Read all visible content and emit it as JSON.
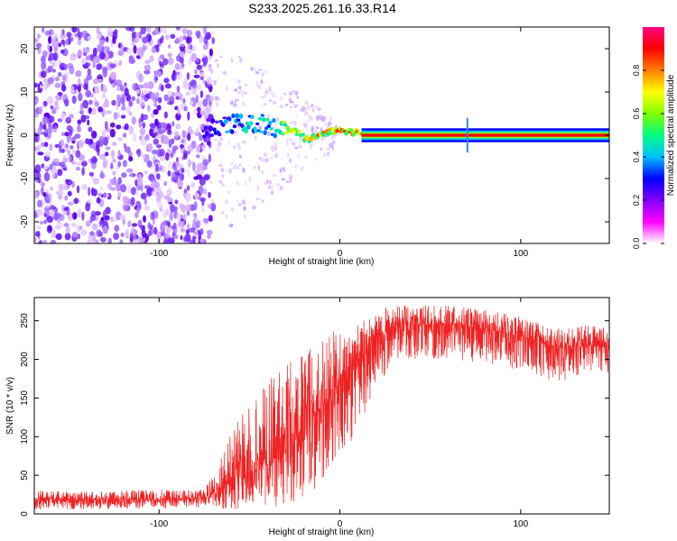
{
  "title": "S233.2025.261.16.33.R14",
  "chart_data": [
    {
      "type": "heatmap",
      "title": "S233.2025.261.16.33.R14",
      "xlabel": "Height of straight line (km)",
      "ylabel": "Frequency (Hz)",
      "xlim": [
        -169,
        149
      ],
      "ylim": [
        -25,
        25
      ],
      "xticks": [
        -100,
        0,
        100
      ],
      "yticks": [
        -20,
        -10,
        0,
        10,
        20
      ],
      "colorbar": {
        "label": "Normalized spectral amplitude",
        "range": [
          0,
          1
        ],
        "ticks": [
          0.0,
          0.2,
          0.4,
          0.6,
          0.8
        ],
        "colors": [
          "#ffffff",
          "#ff00ff",
          "#8000ff",
          "#0000ff",
          "#00c0ff",
          "#00ff80",
          "#80ff00",
          "#ffff00",
          "#ff8000",
          "#ff0000",
          "#ff0080"
        ]
      },
      "noise_region_km": [
        -169,
        -70
      ],
      "transition_region_km": [
        -70,
        15
      ],
      "ridge": {
        "description": "narrow high-amplitude line near 0 Hz",
        "x": [
          -75,
          -60,
          -45,
          -35,
          -25,
          -18,
          -10,
          0,
          10,
          15,
          50,
          100,
          149
        ],
        "freq": [
          1.5,
          2.5,
          3.0,
          1.5,
          1.0,
          -1.0,
          0.5,
          1.2,
          0.5,
          0.0,
          0.0,
          0.0,
          0.0
        ],
        "amplitude": [
          0.25,
          0.4,
          0.45,
          0.55,
          0.7,
          0.75,
          0.8,
          0.85,
          0.9,
          0.95,
          0.95,
          0.95,
          0.95
        ]
      }
    },
    {
      "type": "line",
      "xlabel": "Height of straight line (km)",
      "ylabel": "SNR (10 * v/v)",
      "xlim": [
        -169,
        149
      ],
      "ylim": [
        0,
        280
      ],
      "xticks": [
        -100,
        0,
        100
      ],
      "yticks": [
        0,
        50,
        100,
        150,
        200,
        250
      ],
      "series": [
        {
          "name": "SNR",
          "color": "#ee2222",
          "x": [
            -169,
            -150,
            -130,
            -110,
            -90,
            -75,
            -68,
            -60,
            -50,
            -40,
            -30,
            -20,
            -10,
            0,
            10,
            20,
            30,
            40,
            60,
            80,
            100,
            120,
            135,
            149
          ],
          "y": [
            18,
            18,
            18,
            19,
            19,
            20,
            30,
            45,
            55,
            65,
            85,
            110,
            140,
            170,
            200,
            225,
            240,
            245,
            245,
            240,
            230,
            215,
            220,
            215
          ]
        }
      ],
      "spread_upper": [
        12,
        12,
        12,
        12,
        12,
        12,
        30,
        60,
        90,
        110,
        110,
        100,
        90,
        70,
        45,
        40,
        30,
        25,
        25,
        25,
        25,
        25,
        25,
        25
      ],
      "spread_lower": [
        12,
        12,
        12,
        12,
        12,
        12,
        25,
        40,
        45,
        55,
        75,
        95,
        110,
        110,
        90,
        60,
        50,
        45,
        45,
        45,
        45,
        45,
        40,
        40
      ]
    }
  ]
}
